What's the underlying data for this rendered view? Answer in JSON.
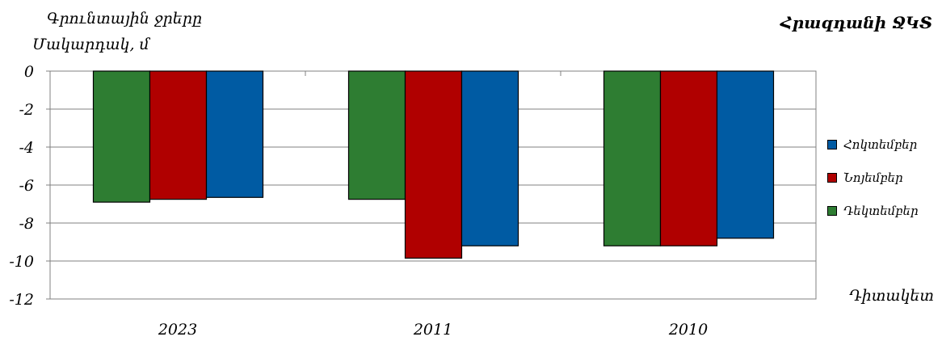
{
  "chart_data": {
    "type": "bar",
    "title": "Հրազդանի ՋԿՏ",
    "ylabel_line1": "Գրունտային ջրերը",
    "ylabel_line2": "Մակարդակ, մ",
    "xlabel": "Դիտակետ",
    "categories": [
      "2023",
      "2011",
      "2010"
    ],
    "ylim": [
      -12,
      0
    ],
    "yticks": [
      0,
      -2,
      -4,
      -6,
      -8,
      -10,
      -12
    ],
    "grid": true,
    "legend_position": "right",
    "series": [
      {
        "name": "Դեկտեմբեր",
        "color": "#2E7D32",
        "values": [
          -6.9,
          -6.75,
          -9.2
        ]
      },
      {
        "name": "Նոյեմբեր",
        "color": "#B00000",
        "values": [
          -6.75,
          -9.85,
          -9.2
        ]
      },
      {
        "name": "Հոկտեմբեր",
        "color": "#005BA3",
        "values": [
          -6.65,
          -9.2,
          -8.8
        ]
      }
    ],
    "legend_order": [
      "Հոկտեմբեր",
      "Նոյեմբեր",
      "Դեկտեմբեր"
    ]
  }
}
